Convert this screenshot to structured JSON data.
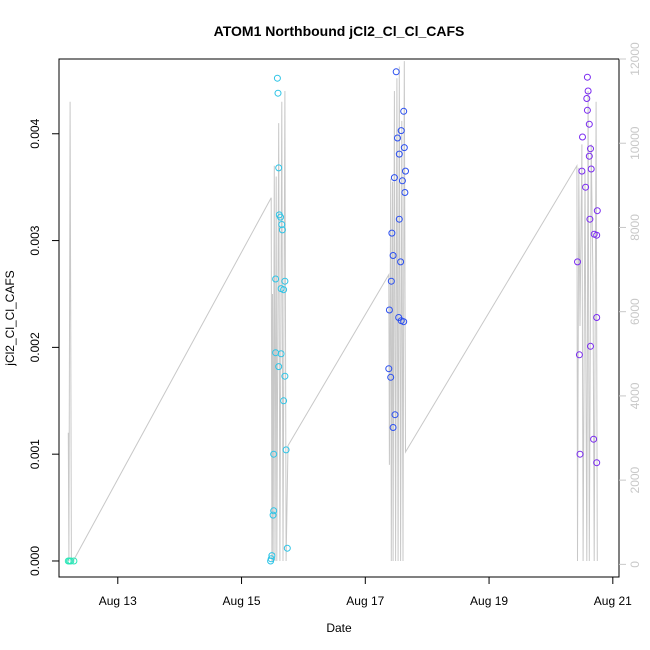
{
  "chart_data": {
    "type": "scatter",
    "title": "ATOM1 Northbound jCl2_Cl_Cl_CAFS",
    "xlabel": "Date",
    "ylabel": "jCl2_Cl_Cl_CAFS",
    "x_range_days": [
      12.05,
      21.1
    ],
    "xlim_labels": [
      "Aug 13",
      "Aug 15",
      "Aug 17",
      "Aug 19",
      "Aug 21"
    ],
    "x_ticks": [
      13,
      15,
      17,
      19,
      21
    ],
    "ylim": [
      -0.00015,
      0.0047
    ],
    "y_ticks": [
      0.0,
      0.001,
      0.002,
      0.003,
      0.004
    ],
    "y_tick_labels": [
      "0.000",
      "0.001",
      "0.002",
      "0.003",
      "0.004"
    ],
    "y2lim": [
      -300,
      12000
    ],
    "y2_ticks": [
      0,
      2000,
      4000,
      6000,
      8000,
      10000,
      12000
    ],
    "y2_tick_labels": [
      "0",
      "2000",
      "4000",
      "6000",
      "8000",
      "10000",
      "12000"
    ],
    "colors": {
      "axis": "#000000",
      "right_axis": "#c8c8c8",
      "line": "#c8c8c8",
      "flight1": "#2ee6b8",
      "flight2": "#2ec4e6",
      "flight3": "#2b4ff0",
      "flight4": "#7a2bf0"
    },
    "series": [
      {
        "color_key": "flight1",
        "points": [
          [
            12.2,
            0.0
          ],
          [
            12.22,
            0.0
          ],
          [
            12.24,
            0.0
          ],
          [
            12.29,
            0.0
          ]
        ]
      },
      {
        "color_key": "flight2",
        "points": [
          [
            15.58,
            0.00452
          ],
          [
            15.59,
            0.00438
          ],
          [
            15.6,
            0.00368
          ],
          [
            15.61,
            0.00324
          ],
          [
            15.63,
            0.00322
          ],
          [
            15.65,
            0.00315
          ],
          [
            15.66,
            0.0031
          ],
          [
            15.55,
            0.00264
          ],
          [
            15.64,
            0.00255
          ],
          [
            15.68,
            0.00254
          ],
          [
            15.7,
            0.00262
          ],
          [
            15.55,
            0.00195
          ],
          [
            15.64,
            0.00194
          ],
          [
            15.6,
            0.00182
          ],
          [
            15.7,
            0.00173
          ],
          [
            15.68,
            0.0015
          ],
          [
            15.72,
            0.00104
          ],
          [
            15.52,
            0.001
          ],
          [
            15.52,
            0.00047
          ],
          [
            15.51,
            0.00043
          ],
          [
            15.49,
            5e-05
          ],
          [
            15.48,
            2e-05
          ],
          [
            15.47,
            0.0
          ],
          [
            15.74,
            0.00012
          ]
        ]
      },
      {
        "color_key": "flight3",
        "points": [
          [
            17.5,
            0.00458
          ],
          [
            17.62,
            0.00421
          ],
          [
            17.58,
            0.00403
          ],
          [
            17.52,
            0.00396
          ],
          [
            17.63,
            0.00387
          ],
          [
            17.55,
            0.00381
          ],
          [
            17.65,
            0.00365
          ],
          [
            17.47,
            0.00359
          ],
          [
            17.6,
            0.00356
          ],
          [
            17.64,
            0.00345
          ],
          [
            17.55,
            0.0032
          ],
          [
            17.43,
            0.00307
          ],
          [
            17.45,
            0.00286
          ],
          [
            17.57,
            0.0028
          ],
          [
            17.42,
            0.00262
          ],
          [
            17.39,
            0.00235
          ],
          [
            17.54,
            0.00228
          ],
          [
            17.58,
            0.00225
          ],
          [
            17.62,
            0.00224
          ],
          [
            17.38,
            0.0018
          ],
          [
            17.41,
            0.00172
          ],
          [
            17.48,
            0.00137
          ],
          [
            17.45,
            0.00125
          ]
        ]
      },
      {
        "color_key": "flight4",
        "points": [
          [
            20.59,
            0.00453
          ],
          [
            20.6,
            0.0044
          ],
          [
            20.58,
            0.00433
          ],
          [
            20.59,
            0.00422
          ],
          [
            20.62,
            0.00409
          ],
          [
            20.51,
            0.00397
          ],
          [
            20.64,
            0.00386
          ],
          [
            20.62,
            0.00379
          ],
          [
            20.65,
            0.00367
          ],
          [
            20.5,
            0.00365
          ],
          [
            20.56,
            0.0035
          ],
          [
            20.75,
            0.00328
          ],
          [
            20.63,
            0.0032
          ],
          [
            20.7,
            0.00306
          ],
          [
            20.74,
            0.00305
          ],
          [
            20.43,
            0.0028
          ],
          [
            20.74,
            0.00228
          ],
          [
            20.64,
            0.00201
          ],
          [
            20.46,
            0.00193
          ],
          [
            20.69,
            0.00114
          ],
          [
            20.47,
            0.001
          ],
          [
            20.74,
            0.00092
          ]
        ]
      }
    ],
    "gray_line": [
      [
        12.2,
        0.0012
      ],
      [
        12.21,
        0.0
      ],
      [
        12.23,
        0.0043
      ],
      [
        12.25,
        0.0
      ],
      [
        12.28,
        0.0
      ],
      [
        15.48,
        0.0034
      ],
      [
        15.49,
        0.0
      ],
      [
        15.5,
        0.0025
      ],
      [
        15.51,
        0.0
      ],
      [
        15.53,
        0.0037
      ],
      [
        15.54,
        0.0
      ],
      [
        15.56,
        0.0036
      ],
      [
        15.57,
        0.0
      ],
      [
        15.6,
        0.0041
      ],
      [
        15.62,
        0.0
      ],
      [
        15.65,
        0.0043
      ],
      [
        15.67,
        0.0
      ],
      [
        15.7,
        0.0044
      ],
      [
        15.72,
        0.0
      ],
      [
        15.75,
        0.00108
      ],
      [
        17.38,
        0.00268
      ],
      [
        17.39,
        0.0009
      ],
      [
        17.41,
        0.00358
      ],
      [
        17.42,
        0.0
      ],
      [
        17.44,
        0.00355
      ],
      [
        17.45,
        0.0
      ],
      [
        17.47,
        0.0044
      ],
      [
        17.49,
        0.0
      ],
      [
        17.51,
        0.00452
      ],
      [
        17.53,
        0.0
      ],
      [
        17.55,
        0.00463
      ],
      [
        17.57,
        0.0
      ],
      [
        17.59,
        0.00412
      ],
      [
        17.61,
        0.0
      ],
      [
        17.63,
        0.00468
      ],
      [
        17.65,
        0.00102
      ],
      [
        20.42,
        0.0037
      ],
      [
        20.43,
        0.0
      ],
      [
        20.45,
        0.00368
      ],
      [
        20.47,
        0.0022
      ],
      [
        20.5,
        0.0039
      ],
      [
        20.52,
        0.0
      ],
      [
        20.55,
        0.00365
      ],
      [
        20.58,
        0.0
      ],
      [
        20.6,
        0.0044
      ],
      [
        20.62,
        0.0
      ],
      [
        20.65,
        0.0039
      ],
      [
        20.68,
        0.0026
      ],
      [
        20.7,
        0.0
      ],
      [
        20.73,
        0.0043
      ],
      [
        20.75,
        0.0
      ]
    ]
  }
}
